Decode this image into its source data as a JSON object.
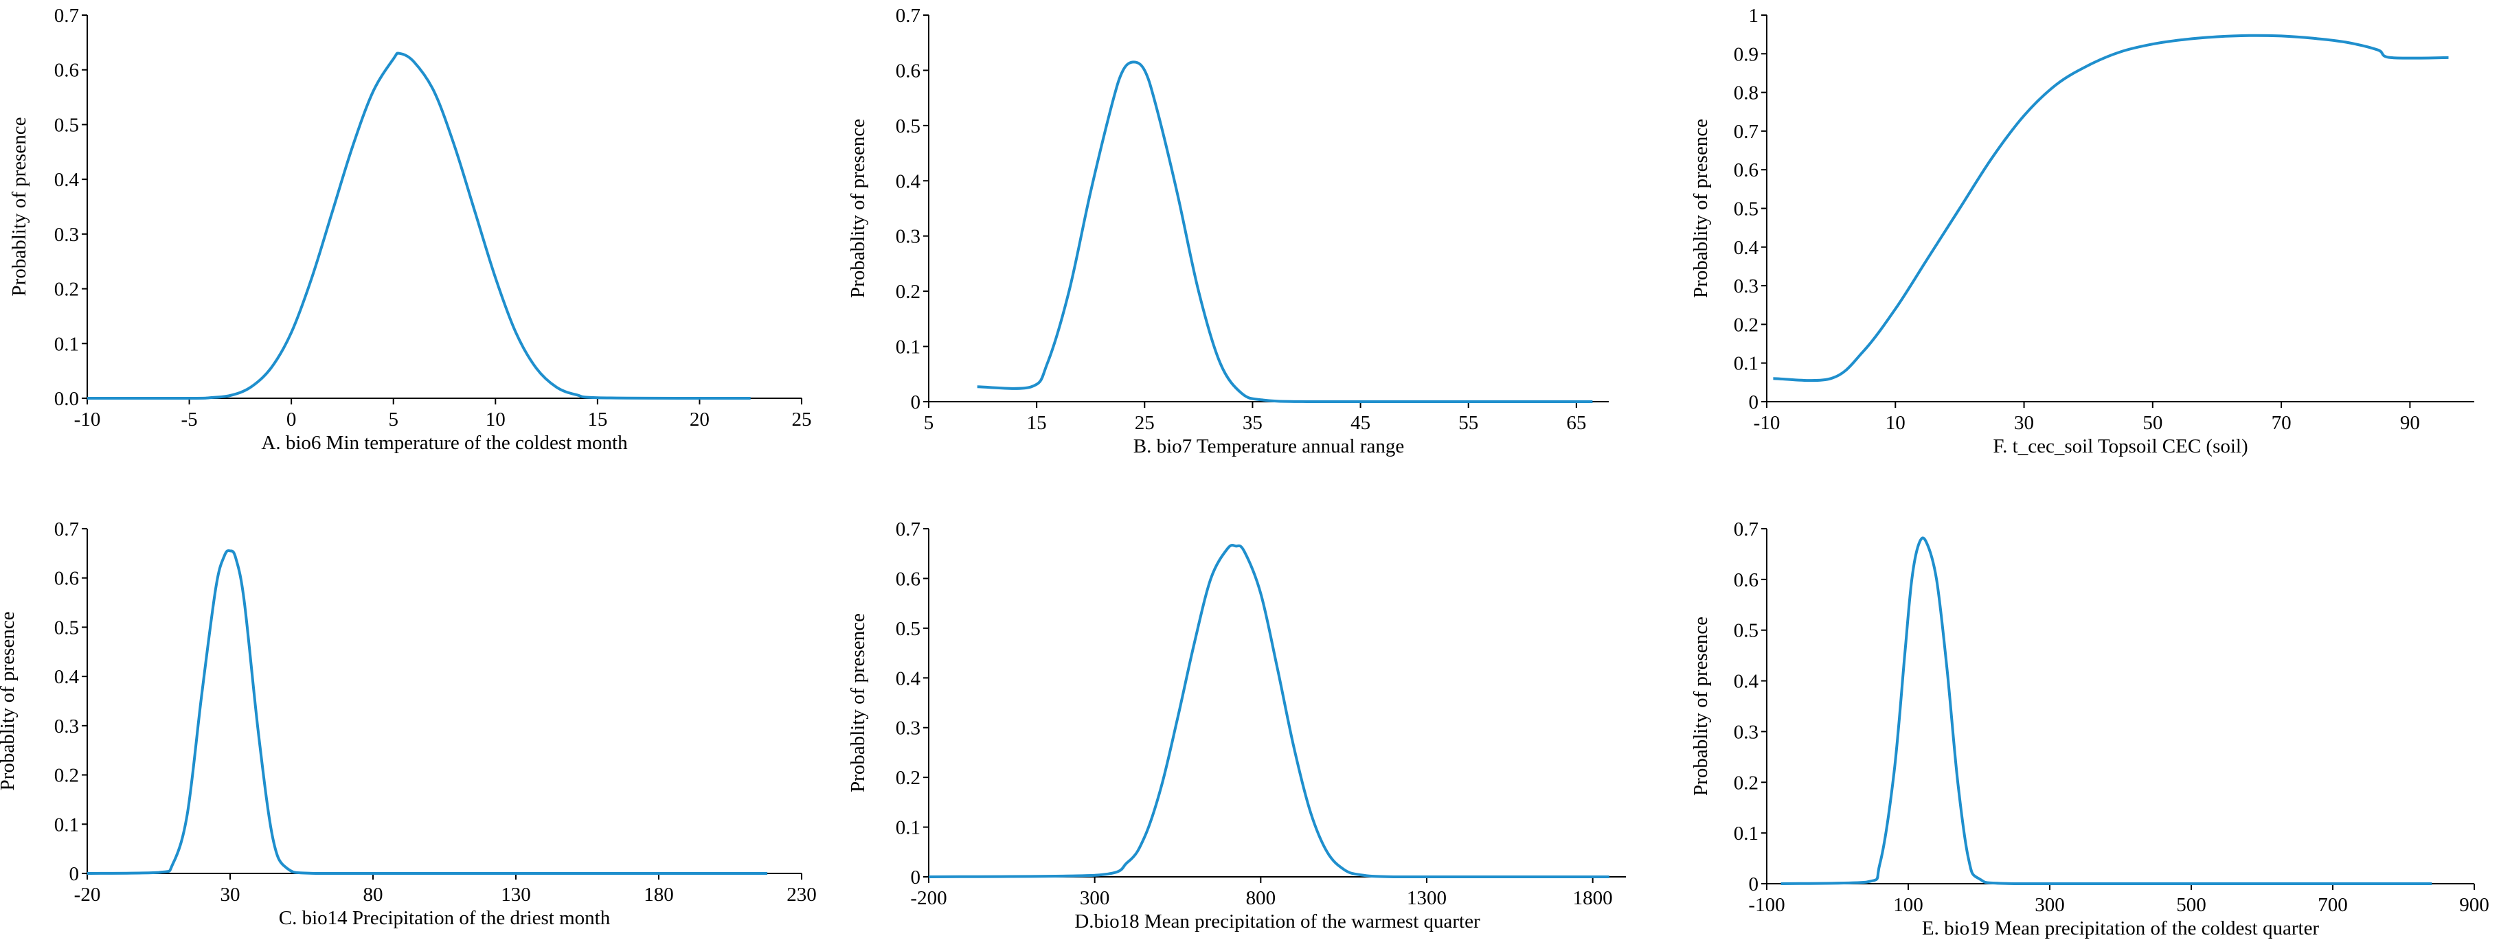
{
  "colors": {
    "curve": "#1f8fcd",
    "axis": "#000000"
  },
  "chart_data": [
    {
      "type": "line",
      "panel": "A",
      "xlabel": "A. bio6   Min temperature of the coldest month",
      "ylabel": "Probablity of presence",
      "xlim": [
        -10,
        25
      ],
      "ylim": [
        0,
        0.7
      ],
      "xticks": [
        "-10",
        "-5",
        "0",
        "5",
        "10",
        "15",
        "20",
        "25"
      ],
      "yticks": [
        "0.0",
        "0.1",
        "0.2",
        "0.3",
        "0.4",
        "0.5",
        "0.6",
        "0.7"
      ],
      "series": [
        {
          "name": "response",
          "x": [
            -10,
            -5,
            -4,
            -3,
            -2,
            -1,
            0,
            1,
            2,
            3,
            4,
            5,
            5.3,
            6,
            7,
            8,
            9,
            10,
            11,
            12,
            13,
            14,
            15,
            20,
            22.5
          ],
          "y": [
            0,
            0,
            0.001,
            0.005,
            0.02,
            0.055,
            0.12,
            0.22,
            0.34,
            0.46,
            0.56,
            0.62,
            0.63,
            0.615,
            0.56,
            0.46,
            0.34,
            0.22,
            0.12,
            0.055,
            0.02,
            0.006,
            0.001,
            0,
            0
          ]
        }
      ]
    },
    {
      "type": "line",
      "panel": "B",
      "xlabel": "B. bio7   Temperature annual range",
      "ylabel": "Probablity of presence",
      "xlim": [
        5,
        68
      ],
      "ylim": [
        0,
        0.7
      ],
      "xticks": [
        "5",
        "15",
        "25",
        "35",
        "45",
        "55",
        "65"
      ],
      "yticks": [
        "0",
        "0.1",
        "0.2",
        "0.3",
        "0.4",
        "0.5",
        "0.6",
        "0.7"
      ],
      "series": [
        {
          "name": "response",
          "x": [
            9.5,
            14.5,
            16,
            18,
            20,
            22,
            23,
            24,
            25,
            26,
            28,
            30,
            32,
            34,
            36,
            40,
            50,
            60,
            66.5
          ],
          "y": [
            0.027,
            0.027,
            0.07,
            0.2,
            0.38,
            0.54,
            0.6,
            0.615,
            0.6,
            0.54,
            0.38,
            0.2,
            0.07,
            0.015,
            0.003,
            0,
            0,
            0,
            0
          ]
        }
      ]
    },
    {
      "type": "line",
      "panel": "F",
      "xlabel": "F. t_cec_soil    Topsoil CEC (soil)",
      "ylabel": "Probablity of presence",
      "xlim": [
        -10,
        100
      ],
      "ylim": [
        0,
        1
      ],
      "xticks": [
        "-10",
        "10",
        "30",
        "50",
        "70",
        "90"
      ],
      "yticks": [
        "0",
        "0.1",
        "0.2",
        "0.3",
        "0.4",
        "0.5",
        "0.6",
        "0.7",
        "0.8",
        "0.9",
        "1"
      ],
      "series": [
        {
          "name": "response",
          "x": [
            -9,
            0,
            5,
            10,
            15,
            20,
            25,
            30,
            35,
            40,
            45,
            50,
            55,
            60,
            65,
            70,
            75,
            80,
            85,
            87,
            96
          ],
          "y": [
            0.06,
            0.06,
            0.13,
            0.24,
            0.37,
            0.5,
            0.63,
            0.74,
            0.82,
            0.87,
            0.905,
            0.925,
            0.937,
            0.944,
            0.947,
            0.946,
            0.94,
            0.93,
            0.91,
            0.89,
            0.89
          ]
        }
      ]
    },
    {
      "type": "line",
      "panel": "C",
      "xlabel": "C. bio14   Precipitation of the driest month",
      "ylabel": "Probablity of presence",
      "xlim": [
        -20,
        230
      ],
      "ylim": [
        0,
        0.7
      ],
      "xticks": [
        "-20",
        "30",
        "80",
        "130",
        "180",
        "230"
      ],
      "yticks": [
        "0",
        "0.1",
        "0.2",
        "0.3",
        "0.4",
        "0.5",
        "0.6",
        "0.7"
      ],
      "series": [
        {
          "name": "response",
          "x": [
            -20,
            5,
            10,
            15,
            20,
            25,
            28,
            30,
            32,
            35,
            40,
            45,
            50,
            60,
            100,
            150,
            218
          ],
          "y": [
            0,
            0.002,
            0.02,
            0.12,
            0.36,
            0.58,
            0.645,
            0.655,
            0.64,
            0.55,
            0.28,
            0.07,
            0.01,
            0,
            0,
            0,
            0
          ]
        }
      ]
    },
    {
      "type": "line",
      "panel": "D",
      "xlabel": "D.bio18   Mean precipitation of the warmest quarter",
      "ylabel": "Probablity of presence",
      "xlim": [
        -200,
        1900
      ],
      "ylim": [
        0,
        0.7
      ],
      "xticks": [
        "-200",
        "300",
        "800",
        "1300",
        "1800"
      ],
      "yticks": [
        "0",
        "0.1",
        "0.2",
        "0.3",
        "0.4",
        "0.5",
        "0.6",
        "0.7"
      ],
      "series": [
        {
          "name": "response",
          "x": [
            -200,
            300,
            400,
            450,
            500,
            550,
            600,
            650,
            700,
            725,
            750,
            800,
            850,
            900,
            950,
            1000,
            1050,
            1100,
            1200,
            1500,
            1850
          ],
          "y": [
            0,
            0.003,
            0.03,
            0.08,
            0.18,
            0.32,
            0.47,
            0.6,
            0.66,
            0.665,
            0.655,
            0.57,
            0.42,
            0.26,
            0.13,
            0.05,
            0.015,
            0.004,
            0,
            0,
            0
          ]
        }
      ]
    },
    {
      "type": "line",
      "panel": "E",
      "xlabel": "E. bio19   Mean precipitation of the coldest quarter",
      "ylabel": "Probablity of presence",
      "xlim": [
        -100,
        900
      ],
      "ylim": [
        0,
        0.7
      ],
      "xticks": [
        "-100",
        "100",
        "300",
        "500",
        "700",
        "900"
      ],
      "yticks": [
        "0",
        "0.1",
        "0.2",
        "0.3",
        "0.4",
        "0.5",
        "0.6",
        "0.7"
      ],
      "series": [
        {
          "name": "response",
          "x": [
            -80,
            40,
            60,
            80,
            95,
            105,
            115,
            125,
            140,
            155,
            170,
            185,
            200,
            250,
            500,
            840
          ],
          "y": [
            0,
            0.003,
            0.04,
            0.22,
            0.45,
            0.6,
            0.67,
            0.675,
            0.6,
            0.42,
            0.2,
            0.05,
            0.01,
            0,
            0,
            0
          ]
        }
      ]
    }
  ]
}
